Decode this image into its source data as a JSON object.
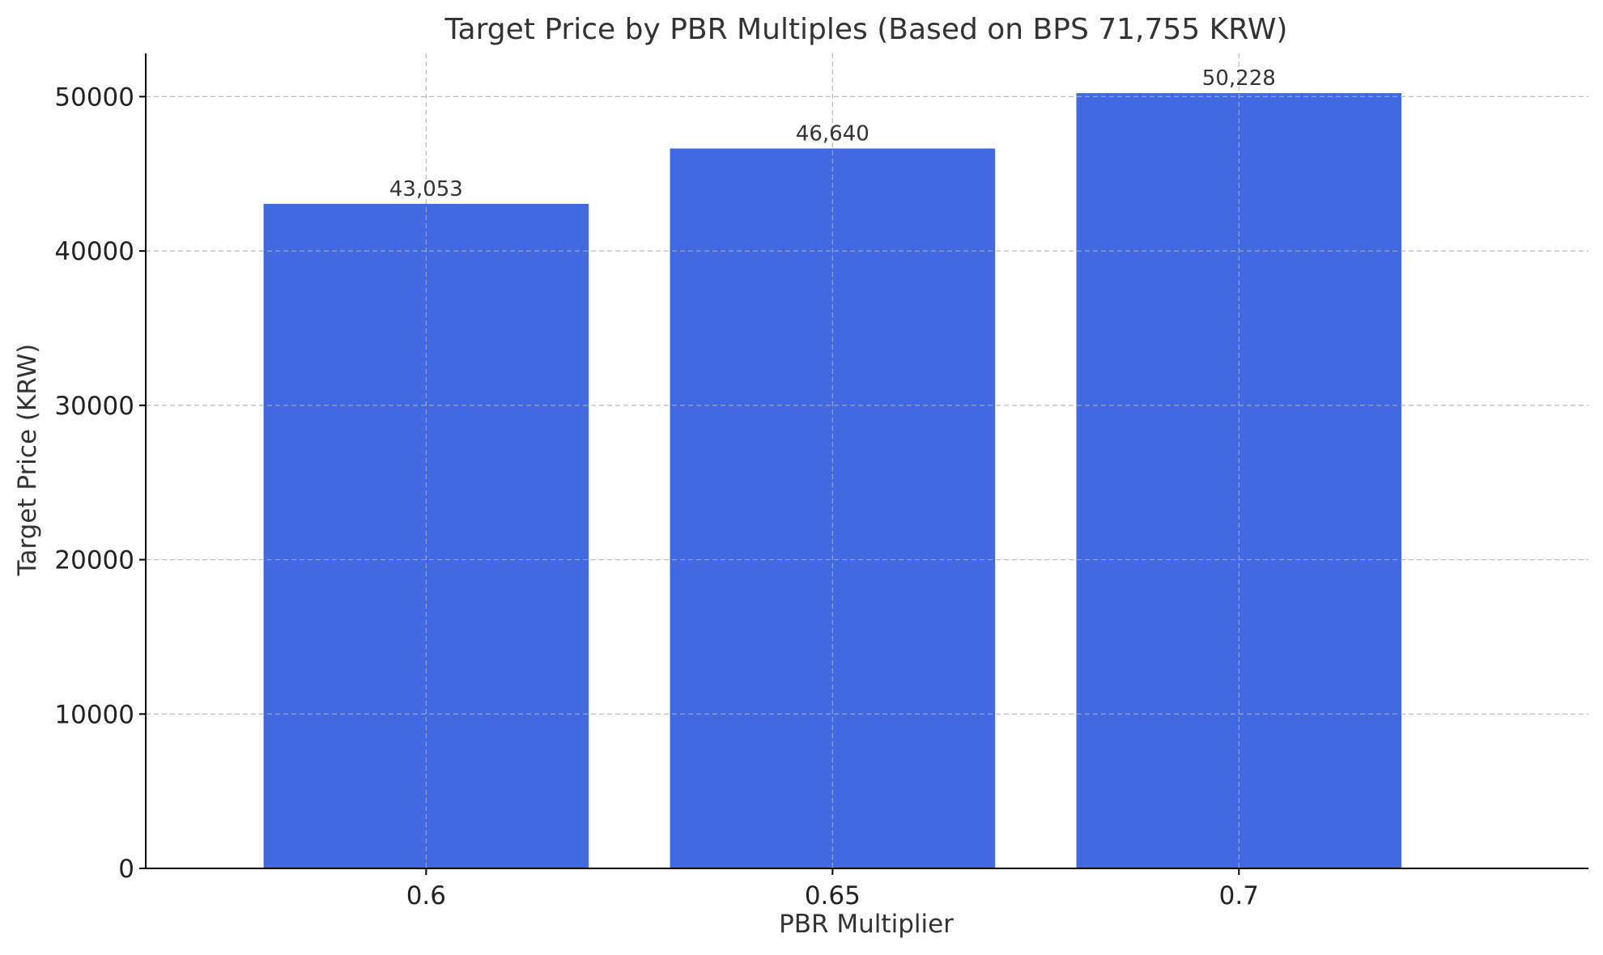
{
  "chart_data": {
    "type": "bar",
    "title": "Target Price by PBR Multiples (Based on BPS 71,755 KRW)",
    "xlabel": "PBR Multiplier",
    "ylabel": "Target Price (KRW)",
    "categories": [
      "0.6",
      "0.65",
      "0.7"
    ],
    "values": [
      43053,
      46640,
      50228
    ],
    "value_labels": [
      "43,053",
      "46,640",
      "50,228"
    ],
    "ylim": [
      0,
      52800
    ],
    "yticks": [
      0,
      10000,
      20000,
      30000,
      40000,
      50000
    ],
    "ytick_labels": [
      "0",
      "10000",
      "20000",
      "30000",
      "40000",
      "50000"
    ],
    "grid": true,
    "bar_color": "#4169e1"
  }
}
